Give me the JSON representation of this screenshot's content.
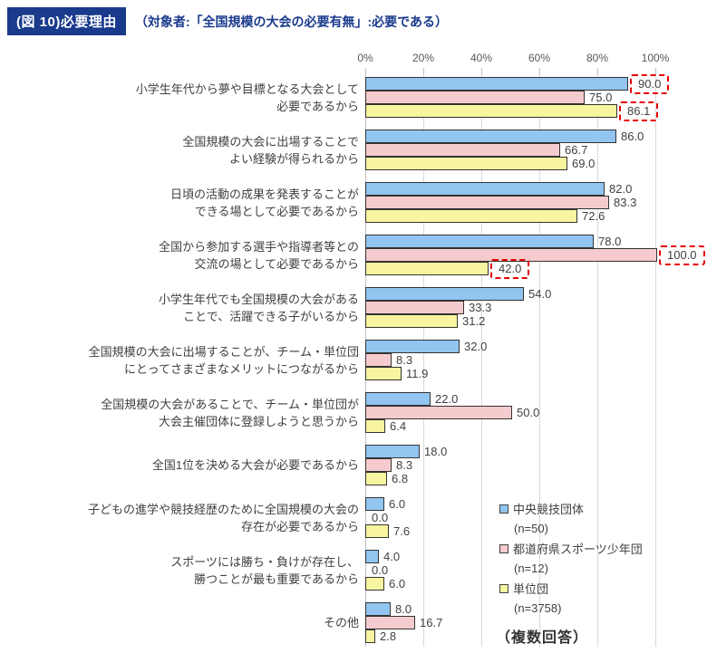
{
  "header": {
    "title": "(図 10)必要理由",
    "subtitle": "（対象者:「全国規模の大会の必要有無」:必要である）"
  },
  "chart_data": {
    "type": "bar",
    "orientation": "horizontal",
    "title": "(図 10)必要理由",
    "subtitle": "（対象者:「全国規模の大会の必要有無」:必要である）",
    "x_axis": {
      "ticks": [
        "0%",
        "20%",
        "40%",
        "60%",
        "80%",
        "100%"
      ],
      "range": [
        0,
        100
      ],
      "grid": true
    },
    "categories": [
      [
        "小学生年代から夢や目標となる大会として",
        "必要であるから"
      ],
      [
        "全国規模の大会に出場することで",
        "よい経験が得られるから"
      ],
      [
        "日頃の活動の成果を発表することが",
        "できる場として必要であるから"
      ],
      [
        "全国から参加する選手や指導者等との",
        "交流の場として必要であるから"
      ],
      [
        "小学生年代でも全国規模の大会がある",
        "ことで、活躍できる子がいるから"
      ],
      [
        "全国規模の大会に出場することが、チーム・単位団",
        "にとってさまざまなメリットにつながるから"
      ],
      [
        "全国規模の大会があることで、チーム・単位団が",
        "大会主催団体に登録しようと思うから"
      ],
      [
        "全国1位を決める大会が必要であるから"
      ],
      [
        "子どもの進学や競技経歴のために全国規模の大会の",
        "存在が必要であるから"
      ],
      [
        "スポーツには勝ち・負けが存在し、",
        "勝つことが最も重要であるから"
      ],
      [
        "その他"
      ]
    ],
    "series": [
      {
        "name": "中央競技団体",
        "n_label": "(n=50)",
        "color": "#92C5F0",
        "values": [
          90.0,
          86.0,
          82.0,
          78.0,
          54.0,
          32.0,
          22.0,
          18.0,
          6.0,
          4.0,
          8.0
        ]
      },
      {
        "name": "都道府県スポーツ少年団",
        "n_label": "(n=12)",
        "color": "#F6CBCD",
        "values": [
          75.0,
          66.7,
          83.3,
          100.0,
          33.3,
          8.3,
          50.0,
          8.3,
          0.0,
          0.0,
          16.7
        ]
      },
      {
        "name": "単位団",
        "n_label": "(n=3758)",
        "color": "#F8F5A0",
        "values": [
          86.1,
          69.0,
          72.6,
          42.0,
          31.2,
          11.9,
          6.4,
          6.8,
          7.6,
          6.0,
          2.8
        ]
      }
    ],
    "highlight_boxes": [
      {
        "category": 0,
        "series": 0
      },
      {
        "category": 0,
        "series": 2
      },
      {
        "category": 3,
        "series": 1
      },
      {
        "category": 3,
        "series": 2
      }
    ],
    "footnote": "（複数回答）",
    "legend_position": "bottom-right",
    "colors": {
      "bar_border": "#333333",
      "highlight_box": "#E60000",
      "title_navy": "#1A3A8C",
      "grid": "#D9D9D9",
      "axis_text": "#595959",
      "label_text": "#404040"
    }
  }
}
